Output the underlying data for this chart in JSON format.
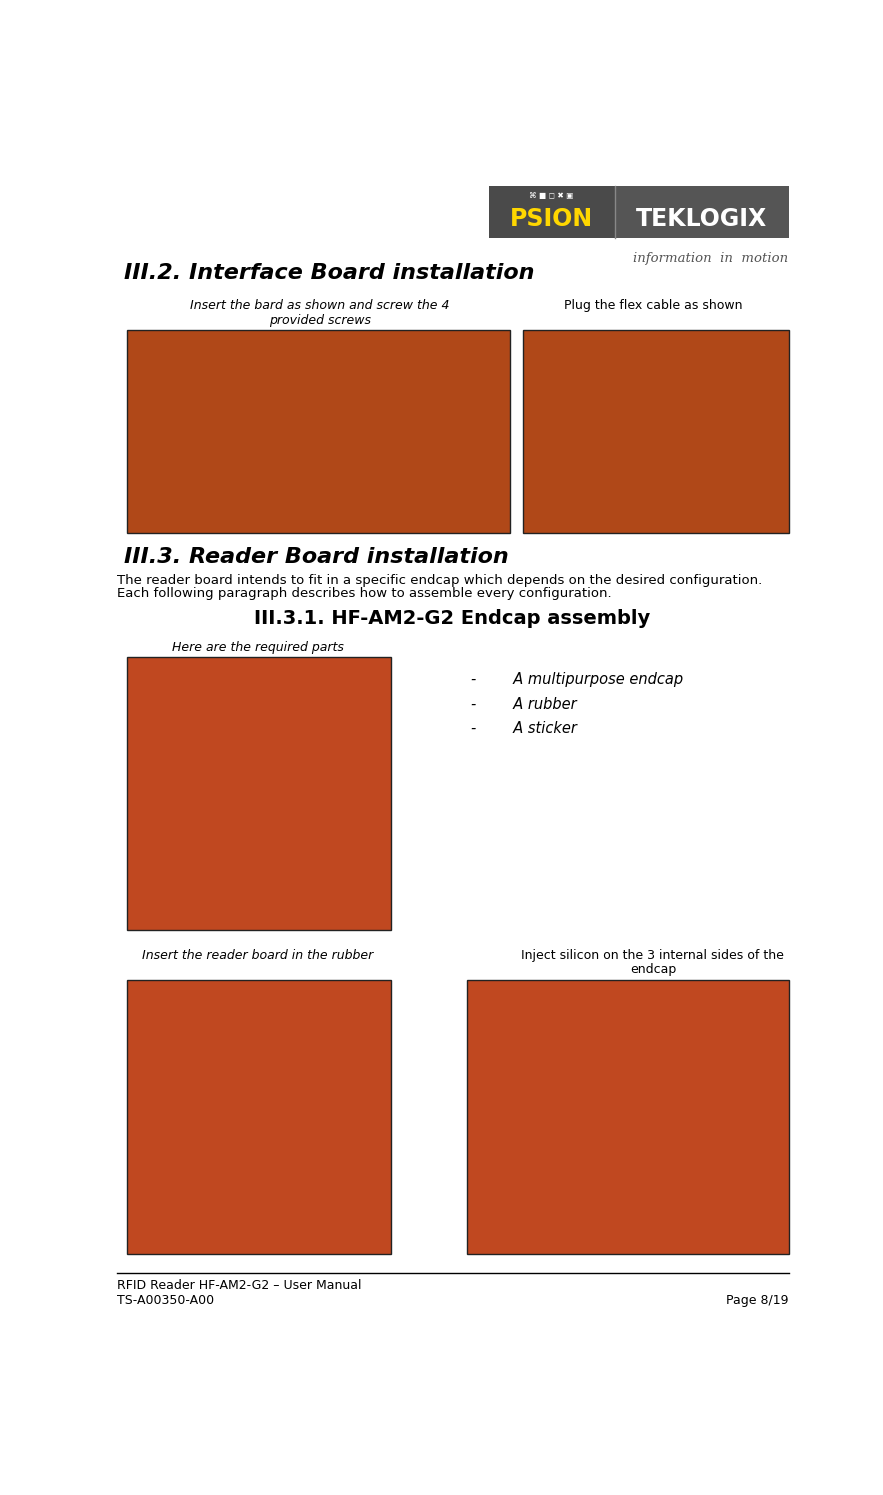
{
  "page_width": 8.83,
  "page_height": 14.95,
  "bg_color": "#ffffff",
  "section_title1": "III.2. Interface Board installation",
  "caption1": "Insert the bard as shown and screw the 4\nprovided screws",
  "caption2": "Plug the flex cable as shown",
  "section_title2": "III.3. Reader Board installation",
  "body_text1": "The reader board intends to fit in a specific endcap which depends on the desired configuration.",
  "body_text2": "Each following paragraph describes how to assemble every configuration.",
  "subsection_title": "III.3.1. HF-AM2-G2 Endcap assembly",
  "caption3": "Here are the required parts",
  "bullet_items": [
    "A multipurpose endcap",
    "A rubber",
    "A sticker"
  ],
  "caption4": "Insert the reader board in the rubber",
  "caption5a": "Inject silicon on the 3 internal sides of the",
  "caption5b": "endcap",
  "footer_left1": "RFID Reader HF-AM2-G2 – User Manual",
  "footer_left2": "TS-A00350-A00",
  "footer_right": "Page 8/19",
  "logo_bg_left": "#4a4a4a",
  "logo_bg_right": "#555555",
  "logo_psion_color": "#FFD700",
  "logo_tek_color": "#ffffff",
  "logo_subtext_color": "#444444",
  "img1_color": "#b04818",
  "img2_color": "#b04818",
  "img3_color": "#c04820",
  "img4_color": "#c04820",
  "img5_color": "#c04820",
  "img_border_color": "#222222"
}
